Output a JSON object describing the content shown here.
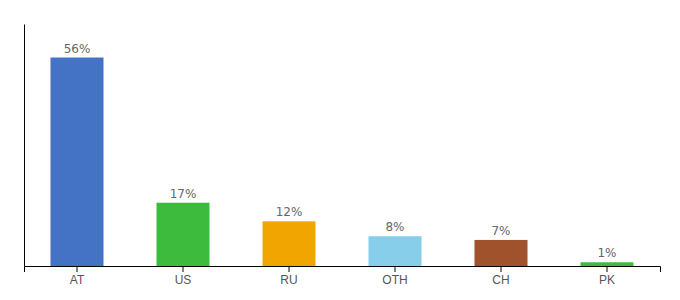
{
  "chart_data": {
    "type": "bar",
    "categories": [
      "AT",
      "US",
      "RU",
      "OTH",
      "CH",
      "PK"
    ],
    "values": [
      56,
      17,
      12,
      8,
      7,
      1
    ],
    "value_labels": [
      "56%",
      "17%",
      "12%",
      "8%",
      "7%",
      "1%"
    ],
    "colors": [
      "#4472c4",
      "#3dbb3d",
      "#f0a500",
      "#87ceeb",
      "#a0522d",
      "#3dbb3d"
    ],
    "ylim": [
      0,
      65
    ],
    "data_labels": true,
    "tick_labels": "x"
  }
}
